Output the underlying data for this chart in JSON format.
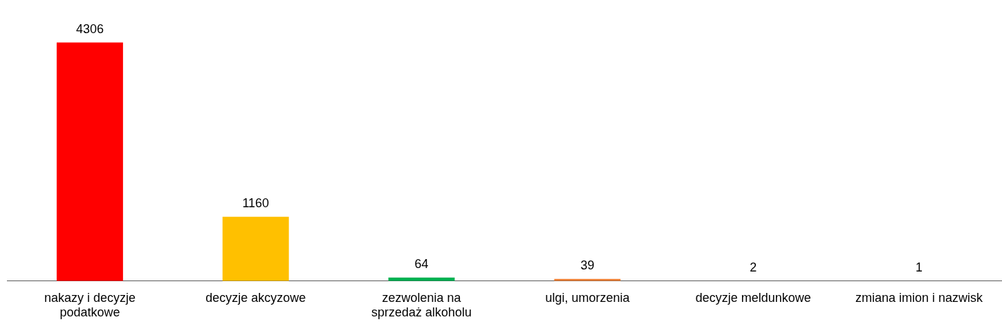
{
  "chart_data": {
    "type": "bar",
    "categories": [
      "nakazy i decyzje podatkowe",
      "decyzje akcyzowe",
      "zezwolenia na sprzedaż alkoholu",
      "ulgi, umorzenia",
      "decyzje meldunkowe",
      "zmiana imion i nazwisk"
    ],
    "values": [
      4306,
      1160,
      64,
      39,
      2,
      1
    ],
    "colors": [
      "#ff0000",
      "#ffc000",
      "#00b050",
      "#ed7d31",
      "#4472c4",
      "#a5a5a5"
    ],
    "data_labels": true,
    "grid": false,
    "legend": false
  }
}
